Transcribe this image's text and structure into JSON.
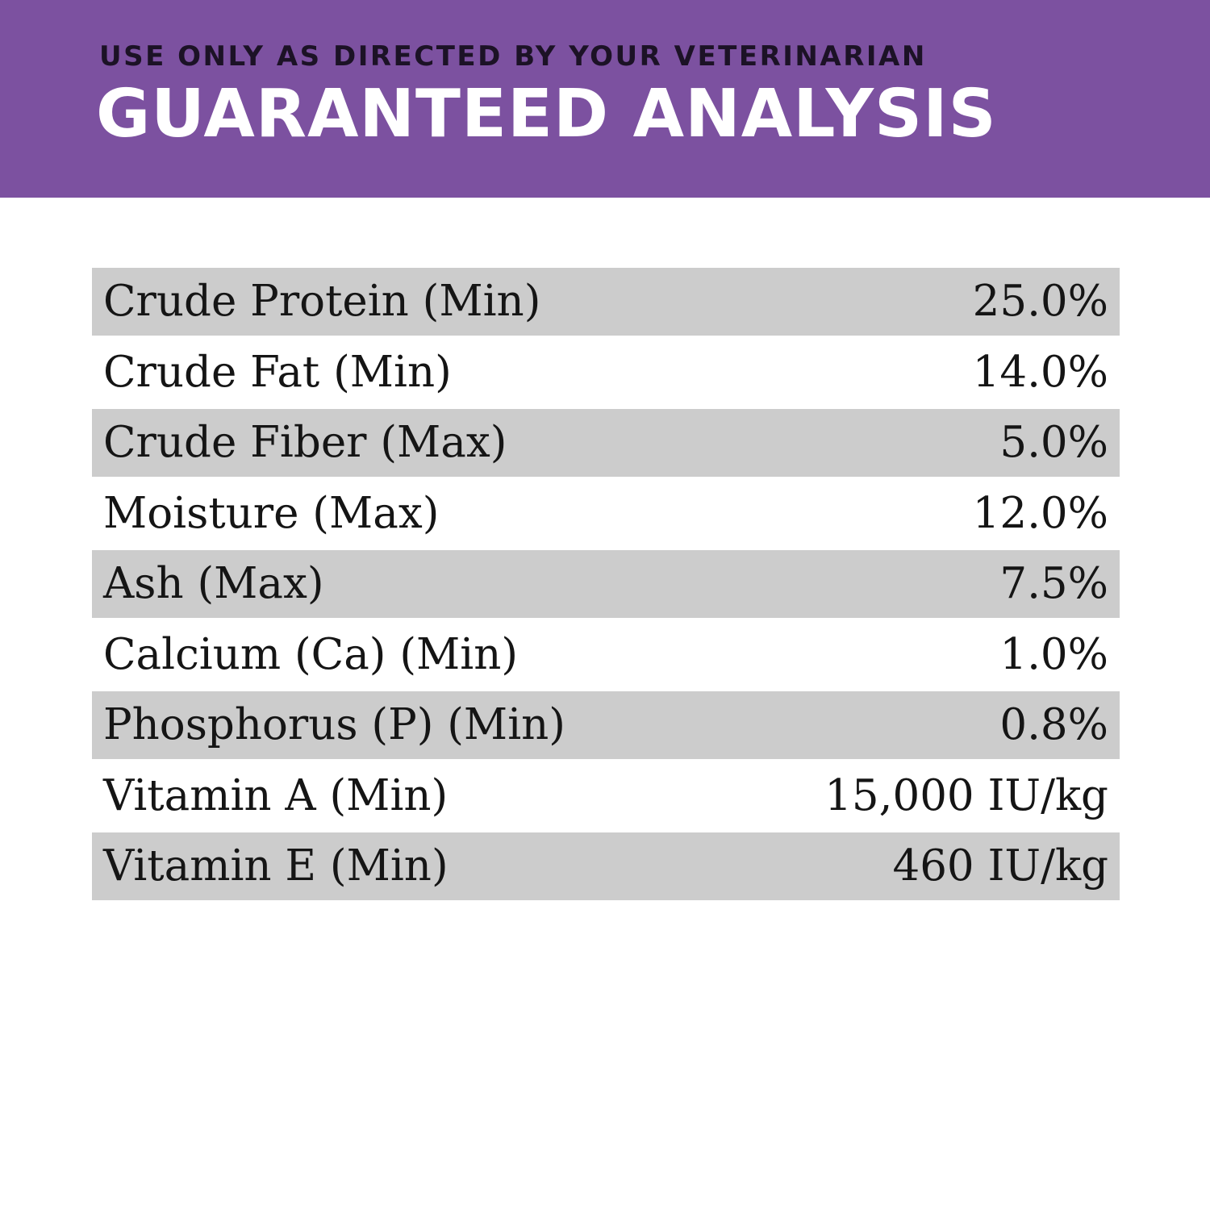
{
  "theme": {
    "purple": "#7C51A0",
    "stripe": "#CCCCCC",
    "rowink": "#151515",
    "titleink": "#FFFFFF",
    "eyebrowink": "#1C1226",
    "paper": "#FFFFFF"
  },
  "header": {
    "eyebrow": "USE ONLY AS DIRECTED BY YOUR VETERINARIAN",
    "title": "GUARANTEED ANALYSIS"
  },
  "table": {
    "rows": [
      {
        "label": "Crude Protein (Min)",
        "value": "25.0%"
      },
      {
        "label": "Crude Fat (Min)",
        "value": "14.0%"
      },
      {
        "label": "Crude Fiber (Max)",
        "value": "5.0%"
      },
      {
        "label": "Moisture (Max)",
        "value": "12.0%"
      },
      {
        "label": "Ash (Max)",
        "value": "7.5%"
      },
      {
        "label": "Calcium (Ca) (Min)",
        "value": "1.0%"
      },
      {
        "label": "Phosphorus (P) (Min)",
        "value": "0.8%"
      },
      {
        "label": "Vitamin A (Min)",
        "value": "15,000 IU/kg"
      },
      {
        "label": "Vitamin E (Min)",
        "value": "460 IU/kg"
      }
    ]
  }
}
